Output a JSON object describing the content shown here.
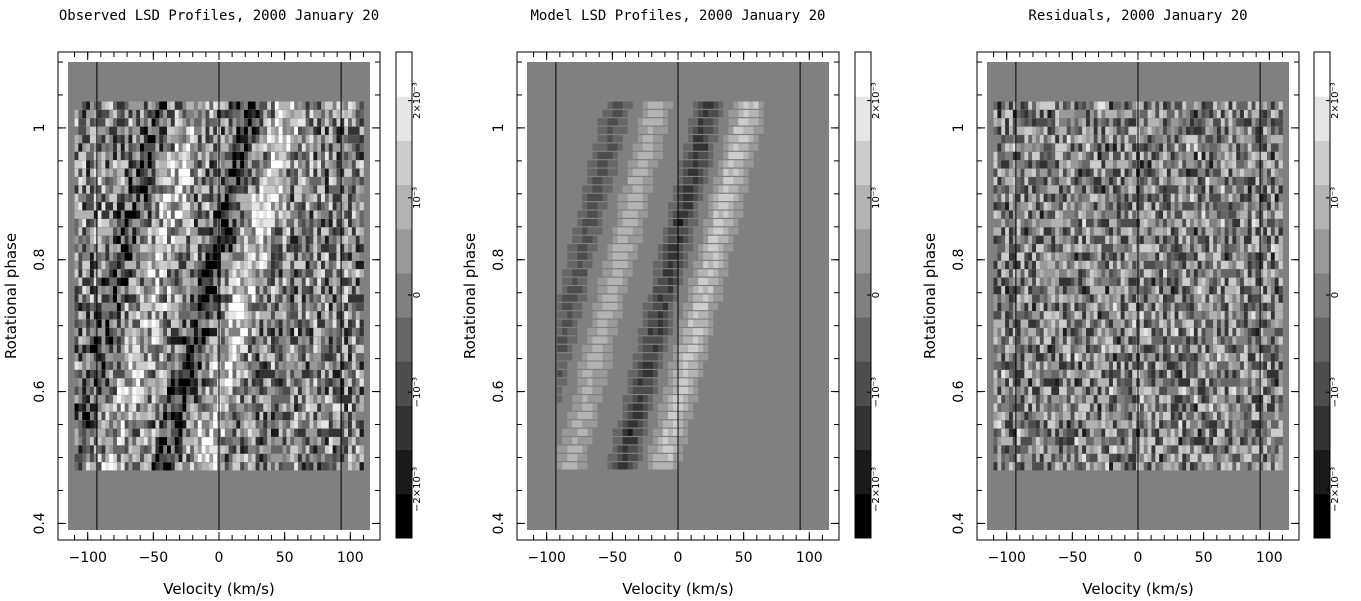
{
  "chart_data": [
    {
      "type": "heatmap",
      "title": "Observed LSD Profiles, 2000 January 20",
      "xlabel": "Velocity (km/s)",
      "ylabel": "Rotational phase",
      "xlim": [
        -115,
        115
      ],
      "ylim": [
        0.39,
        1.1
      ],
      "xticks": [
        -100,
        -50,
        0,
        50,
        100
      ],
      "yticks": [
        0.4,
        0.6,
        0.8,
        1
      ],
      "vertical_lines": [
        -93,
        0,
        93
      ],
      "phase_range": [
        0.48,
        1.04
      ],
      "colorbar": {
        "min": -0.0025,
        "max": 0.0025,
        "ticks": [
          -0.002,
          -0.001,
          0,
          0.001,
          0.002
        ],
        "tick_labels": [
          "−2×10⁻³",
          "−10⁻³",
          "0",
          "10⁻³",
          "2×10⁻³"
        ]
      }
    },
    {
      "type": "heatmap",
      "title": "Model LSD Profiles, 2000 January 20",
      "xlabel": "Velocity (km/s)",
      "ylabel": "Rotational phase",
      "xlim": [
        -115,
        115
      ],
      "ylim": [
        0.39,
        1.1
      ],
      "xticks": [
        -100,
        -50,
        0,
        50,
        100
      ],
      "yticks": [
        0.4,
        0.6,
        0.8,
        1
      ],
      "vertical_lines": [
        -93,
        0,
        93
      ],
      "phase_range": [
        0.48,
        1.04
      ],
      "colorbar": {
        "min": -0.0025,
        "max": 0.0025,
        "ticks": [
          -0.002,
          -0.001,
          0,
          0.001,
          0.002
        ],
        "tick_labels": [
          "−2×10⁻³",
          "−10⁻³",
          "0",
          "10⁻³",
          "2×10⁻³"
        ]
      }
    },
    {
      "type": "heatmap",
      "title": "Residuals, 2000 January 20",
      "xlabel": "Velocity (km/s)",
      "ylabel": "Rotational phase",
      "xlim": [
        -115,
        115
      ],
      "ylim": [
        0.39,
        1.1
      ],
      "xticks": [
        -100,
        -50,
        0,
        50,
        100
      ],
      "yticks": [
        0.4,
        0.6,
        0.8,
        1
      ],
      "vertical_lines": [
        -93,
        0,
        93
      ],
      "phase_range": [
        0.48,
        1.04
      ],
      "colorbar": {
        "min": -0.0025,
        "max": 0.0025,
        "ticks": [
          -0.002,
          -0.001,
          0,
          0.001,
          0.002
        ],
        "tick_labels": [
          "−2×10⁻³",
          "−10⁻³",
          "0",
          "10⁻³",
          "2×10⁻³"
        ]
      }
    }
  ]
}
